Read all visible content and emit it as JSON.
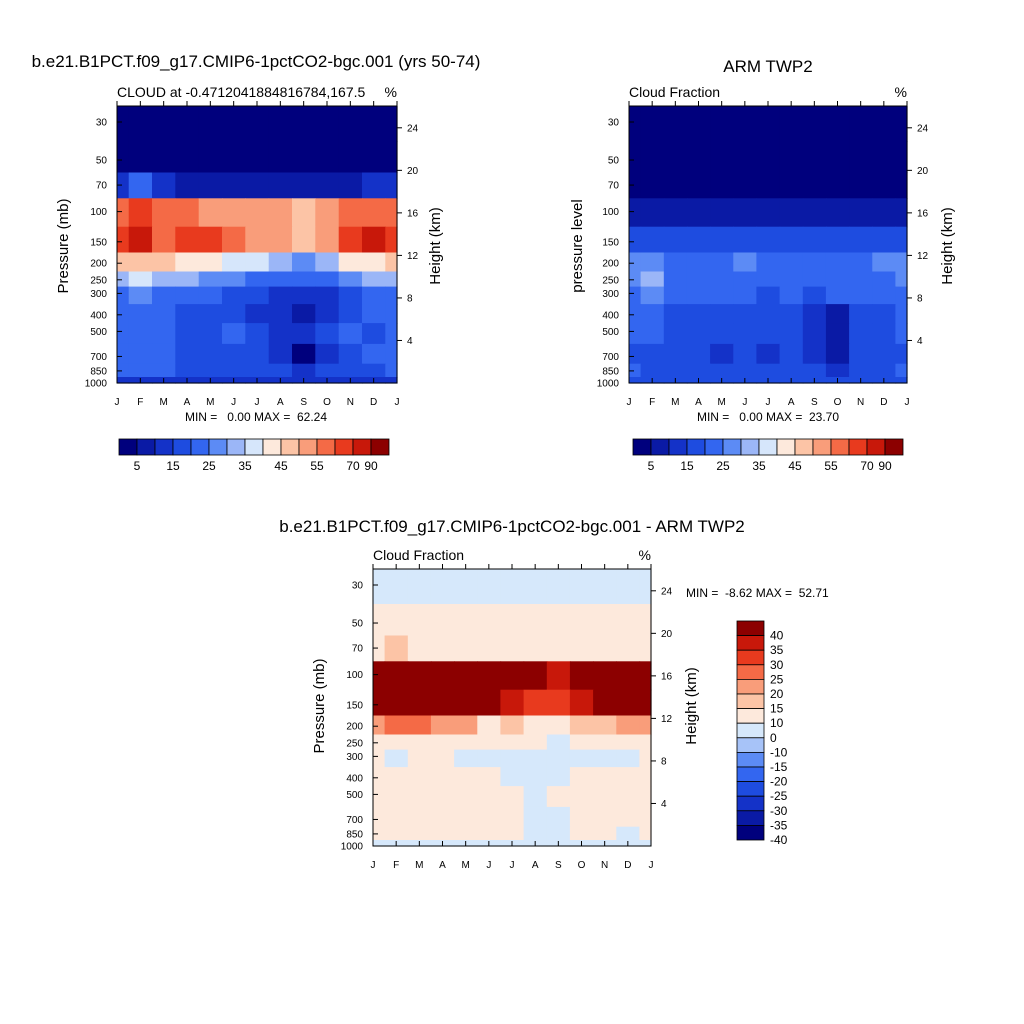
{
  "colors": {
    "blue_red_scale": [
      "#00007d",
      "#0a1aa5",
      "#1432c8",
      "#1e4ce0",
      "#3366f0",
      "#5c8bf5",
      "#9bb6f7",
      "#d6e6fb",
      "#fde9dc",
      "#fcc4a6",
      "#f99d7a",
      "#f46a46",
      "#e83a1e",
      "#c8180a",
      "#8c0000"
    ],
    "diff_scale": [
      "#00007d",
      "#0a1aa5",
      "#1432c8",
      "#1e4ce0",
      "#3366f0",
      "#5c8bf5",
      "#a7c3f8",
      "#d6e8fb",
      "#fde9dc",
      "#fcc4a6",
      "#f99d7a",
      "#f46a46",
      "#e83a1e",
      "#c8180a",
      "#8c0000"
    ]
  },
  "chart_data": [
    {
      "type": "heatmap",
      "title": "b.e21.B1PCT.f09_g17.CMIP6-1pctCO2-bgc.001 (yrs 50-74)",
      "left_label": "CLOUD at -0.4712041884816784,167.5",
      "right_label": "%",
      "ylabel": "Pressure (mb)",
      "ylabel_right": "Height (km)",
      "x_ticks": [
        "J",
        "F",
        "M",
        "A",
        "M",
        "J",
        "J",
        "A",
        "S",
        "O",
        "N",
        "D",
        "J"
      ],
      "y_ticks": [
        "30",
        "50",
        "70",
        "100",
        "150",
        "200",
        "250",
        "300",
        "400",
        "500",
        "700",
        "850",
        "1000"
      ],
      "y_ticks_right": [
        "24",
        "20",
        "16",
        "12",
        "8",
        "4"
      ],
      "stats": "MIN =   0.00 MAX =  62.24",
      "colorbar_labels": [
        "5",
        "15",
        "25",
        "35",
        "45",
        "55",
        "70",
        "90"
      ],
      "levels": [
        30,
        50,
        70,
        100,
        150,
        200,
        250,
        300,
        400,
        500,
        700,
        850,
        1000
      ],
      "values": [
        [
          0,
          0,
          0,
          0,
          0,
          0,
          0,
          0,
          0,
          0,
          0,
          0,
          0
        ],
        [
          0,
          0,
          0,
          0,
          0,
          0,
          0,
          0,
          0,
          0,
          0,
          0,
          0
        ],
        [
          8,
          12,
          6,
          4,
          3,
          3,
          3,
          3,
          3,
          3,
          4,
          6,
          8
        ],
        [
          45,
          55,
          48,
          45,
          44,
          42,
          42,
          40,
          38,
          40,
          45,
          50,
          45
        ],
        [
          56,
          60,
          50,
          52,
          54,
          46,
          44,
          40,
          36,
          42,
          52,
          58,
          56
        ],
        [
          34,
          36,
          34,
          30,
          28,
          26,
          24,
          20,
          18,
          22,
          28,
          32,
          34
        ],
        [
          22,
          24,
          22,
          20,
          18,
          16,
          14,
          12,
          12,
          14,
          18,
          22,
          22
        ],
        [
          14,
          16,
          14,
          13,
          12,
          10,
          10,
          8,
          6,
          8,
          10,
          12,
          14
        ],
        [
          12,
          14,
          12,
          11,
          10,
          10,
          8,
          7,
          4,
          6,
          10,
          12,
          12
        ],
        [
          12,
          12,
          12,
          10,
          10,
          12,
          10,
          8,
          8,
          10,
          14,
          10,
          12
        ],
        [
          12,
          12,
          12,
          11,
          10,
          10,
          9,
          8,
          2,
          6,
          10,
          12,
          12
        ],
        [
          12,
          12,
          12,
          11,
          11,
          10,
          10,
          9,
          8,
          10,
          10,
          10,
          12
        ],
        [
          6,
          6,
          6,
          6,
          6,
          6,
          6,
          6,
          6,
          6,
          6,
          6,
          6
        ]
      ]
    },
    {
      "type": "heatmap",
      "title": "ARM TWP2",
      "left_label": "Cloud Fraction",
      "right_label": "%",
      "ylabel": "pressure level",
      "ylabel_right": "Height (km)",
      "x_ticks": [
        "J",
        "F",
        "M",
        "A",
        "M",
        "J",
        "J",
        "A",
        "S",
        "O",
        "N",
        "D",
        "J"
      ],
      "y_ticks": [
        "30",
        "50",
        "70",
        "100",
        "150",
        "200",
        "250",
        "300",
        "400",
        "500",
        "700",
        "850",
        "1000"
      ],
      "y_ticks_right": [
        "24",
        "20",
        "16",
        "12",
        "8",
        "4"
      ],
      "stats": "MIN =   0.00 MAX =  23.70",
      "colorbar_labels": [
        "5",
        "15",
        "25",
        "35",
        "45",
        "55",
        "70",
        "90"
      ],
      "levels": [
        30,
        50,
        70,
        100,
        150,
        200,
        250,
        300,
        400,
        500,
        700,
        850,
        1000
      ],
      "values": [
        [
          0,
          0,
          0,
          0,
          0,
          0,
          0,
          0,
          0,
          0,
          0,
          0,
          0
        ],
        [
          0,
          0,
          0,
          0,
          0,
          0,
          0,
          0,
          0,
          0,
          0,
          0,
          0
        ],
        [
          0,
          0,
          0,
          0,
          0,
          0,
          0,
          0,
          0,
          0,
          0,
          0,
          0
        ],
        [
          4,
          4,
          3,
          3,
          3,
          3,
          3,
          3,
          3,
          3,
          3,
          4,
          4
        ],
        [
          9,
          10,
          10,
          8,
          9,
          8,
          9,
          10,
          8,
          9,
          9,
          9,
          9
        ],
        [
          14,
          15,
          12,
          11,
          12,
          16,
          13,
          11,
          12,
          11,
          13,
          14,
          14
        ],
        [
          14,
          18,
          13,
          12,
          11,
          12,
          13,
          11,
          12,
          12,
          13,
          12,
          14
        ],
        [
          12,
          16,
          12,
          11,
          12,
          12,
          10,
          11,
          9,
          12,
          11,
          12,
          12
        ],
        [
          11,
          11,
          10,
          8,
          8,
          8,
          9,
          10,
          6,
          3,
          8,
          9,
          11
        ],
        [
          11,
          11,
          10,
          8,
          8,
          8,
          9,
          8,
          6,
          2,
          8,
          9,
          11
        ],
        [
          10,
          10,
          9,
          8,
          6,
          8,
          6,
          8,
          7,
          2,
          8,
          10,
          10
        ],
        [
          11,
          10,
          9,
          9,
          8,
          9,
          9,
          9,
          8,
          6,
          9,
          10,
          11
        ],
        [
          9,
          9,
          9,
          9,
          9,
          9,
          9,
          9,
          9,
          9,
          9,
          9,
          9
        ]
      ]
    },
    {
      "type": "heatmap",
      "title": "b.e21.B1PCT.f09_g17.CMIP6-1pctCO2-bgc.001 - ARM TWP2",
      "left_label": "Cloud Fraction",
      "right_label": "%",
      "ylabel": "Pressure (mb)",
      "ylabel_right": "Height (km)",
      "x_ticks": [
        "J",
        "F",
        "M",
        "A",
        "M",
        "J",
        "J",
        "A",
        "S",
        "O",
        "N",
        "D",
        "J"
      ],
      "y_ticks": [
        "30",
        "50",
        "70",
        "100",
        "150",
        "200",
        "250",
        "300",
        "400",
        "500",
        "700",
        "850",
        "1000"
      ],
      "y_ticks_right": [
        "24",
        "20",
        "16",
        "12",
        "8",
        "4"
      ],
      "stats": "MIN =  -8.62 MAX =  52.71",
      "colorbar_labels": [
        "40",
        "35",
        "30",
        "25",
        "20",
        "15",
        "10",
        "0",
        "-10",
        "-15",
        "-20",
        "-25",
        "-30",
        "-35",
        "-40"
      ],
      "levels": [
        30,
        50,
        70,
        100,
        150,
        200,
        250,
        300,
        400,
        500,
        700,
        850,
        1000
      ],
      "values": [
        [
          -2,
          -2,
          -2,
          -2,
          -2,
          -2,
          -2,
          -2,
          -2,
          -2,
          -2,
          -2,
          -2
        ],
        [
          2,
          2,
          2,
          2,
          2,
          2,
          2,
          2,
          2,
          2,
          2,
          2,
          2
        ],
        [
          8,
          12,
          6,
          4,
          3,
          3,
          3,
          3,
          3,
          3,
          4,
          6,
          8
        ],
        [
          41,
          51,
          45,
          42,
          41,
          39,
          39,
          37,
          35,
          37,
          42,
          46,
          41
        ],
        [
          47,
          50,
          40,
          44,
          45,
          38,
          35,
          30,
          28,
          33,
          43,
          49,
          47
        ],
        [
          20,
          21,
          22,
          19,
          16,
          10,
          11,
          9,
          6,
          11,
          15,
          18,
          20
        ],
        [
          8,
          6,
          9,
          8,
          7,
          4,
          1,
          1,
          0,
          2,
          5,
          10,
          8
        ],
        [
          2,
          0,
          2,
          2,
          0,
          -2,
          0,
          -3,
          -3,
          -4,
          -1,
          0,
          2
        ],
        [
          1,
          3,
          2,
          3,
          2,
          2,
          -1,
          -3,
          -2,
          3,
          2,
          3,
          1
        ],
        [
          1,
          1,
          2,
          2,
          2,
          4,
          1,
          0,
          2,
          8,
          6,
          1,
          1
        ],
        [
          2,
          2,
          3,
          3,
          4,
          2,
          3,
          0,
          -5,
          4,
          2,
          2,
          2
        ],
        [
          1,
          2,
          3,
          2,
          3,
          1,
          1,
          0,
          0,
          4,
          1,
          0,
          1
        ],
        [
          -3,
          -3,
          -3,
          -3,
          -3,
          -3,
          -3,
          -3,
          -3,
          -3,
          -3,
          -3,
          -3
        ]
      ]
    }
  ]
}
